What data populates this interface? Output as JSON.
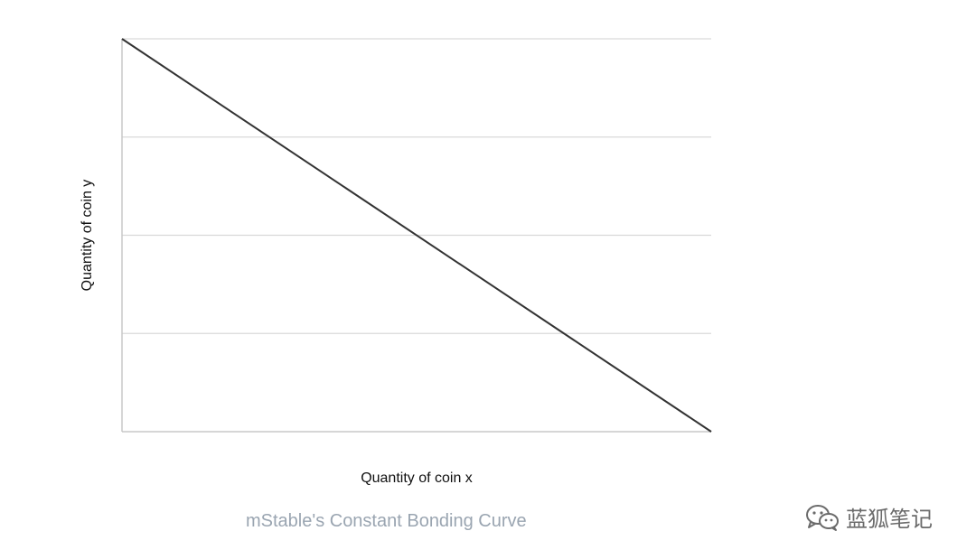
{
  "chart_data": {
    "type": "line",
    "title": "",
    "xlabel": "Quantity of coin x",
    "ylabel": "Quantity of coin y",
    "xlim": [
      0,
      1
    ],
    "ylim": [
      0,
      1
    ],
    "grid": "horizontal",
    "gridlines_y": [
      0.25,
      0.5,
      0.75,
      1
    ],
    "series": [
      {
        "x": [
          0,
          1
        ],
        "values": [
          1,
          0
        ],
        "color": "#333333"
      }
    ]
  },
  "caption": "mStable's Constant Bonding Curve",
  "watermark": {
    "text": "蓝狐笔记",
    "icon": "wechat-icon"
  }
}
